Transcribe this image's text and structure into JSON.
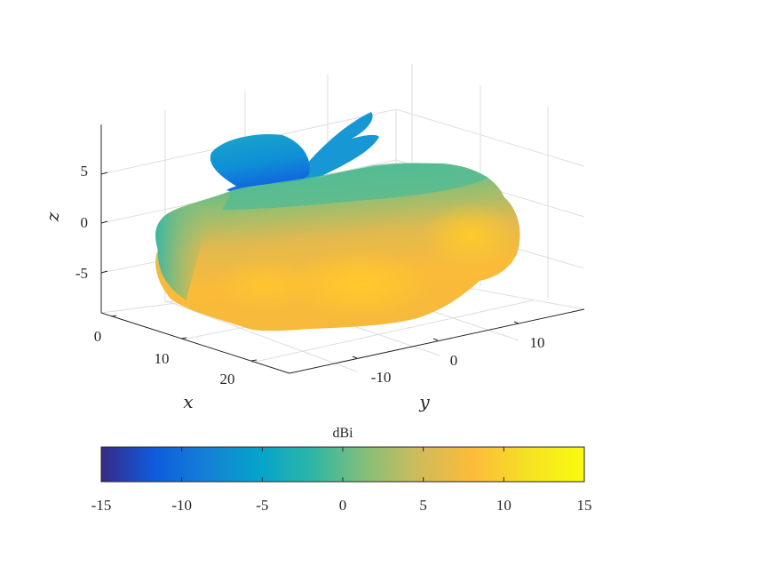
{
  "chart_data": {
    "type": "3d-surface",
    "title": "",
    "xlabel": "x",
    "ylabel": "y",
    "zlabel": "z",
    "x_ticks": [
      "0",
      "10",
      "20"
    ],
    "y_ticks": [
      "-10",
      "0",
      "10"
    ],
    "z_ticks": [
      "5",
      "0",
      "-5"
    ],
    "grid": true,
    "colorbar": {
      "label": "dBi",
      "placement": "bottom",
      "range": [
        -15,
        15
      ],
      "ticks": [
        "-15",
        "-10",
        "-5",
        "0",
        "5",
        "10",
        "15"
      ],
      "colormap": [
        "#352a87",
        "#0f5cdd",
        "#1481d6",
        "#06a4ca",
        "#2eb7a4",
        "#87bf77",
        "#d1bb59",
        "#fdbb3a",
        "#f5e024",
        "#f9fb0e"
      ]
    },
    "surface_colors": {
      "lobe_top": "#1ba0d0",
      "lobe_edge": "#1174dc",
      "body_mid": "#7fbe7c",
      "body_front": "#f8be35",
      "body_peak": "#fecb2c"
    }
  }
}
